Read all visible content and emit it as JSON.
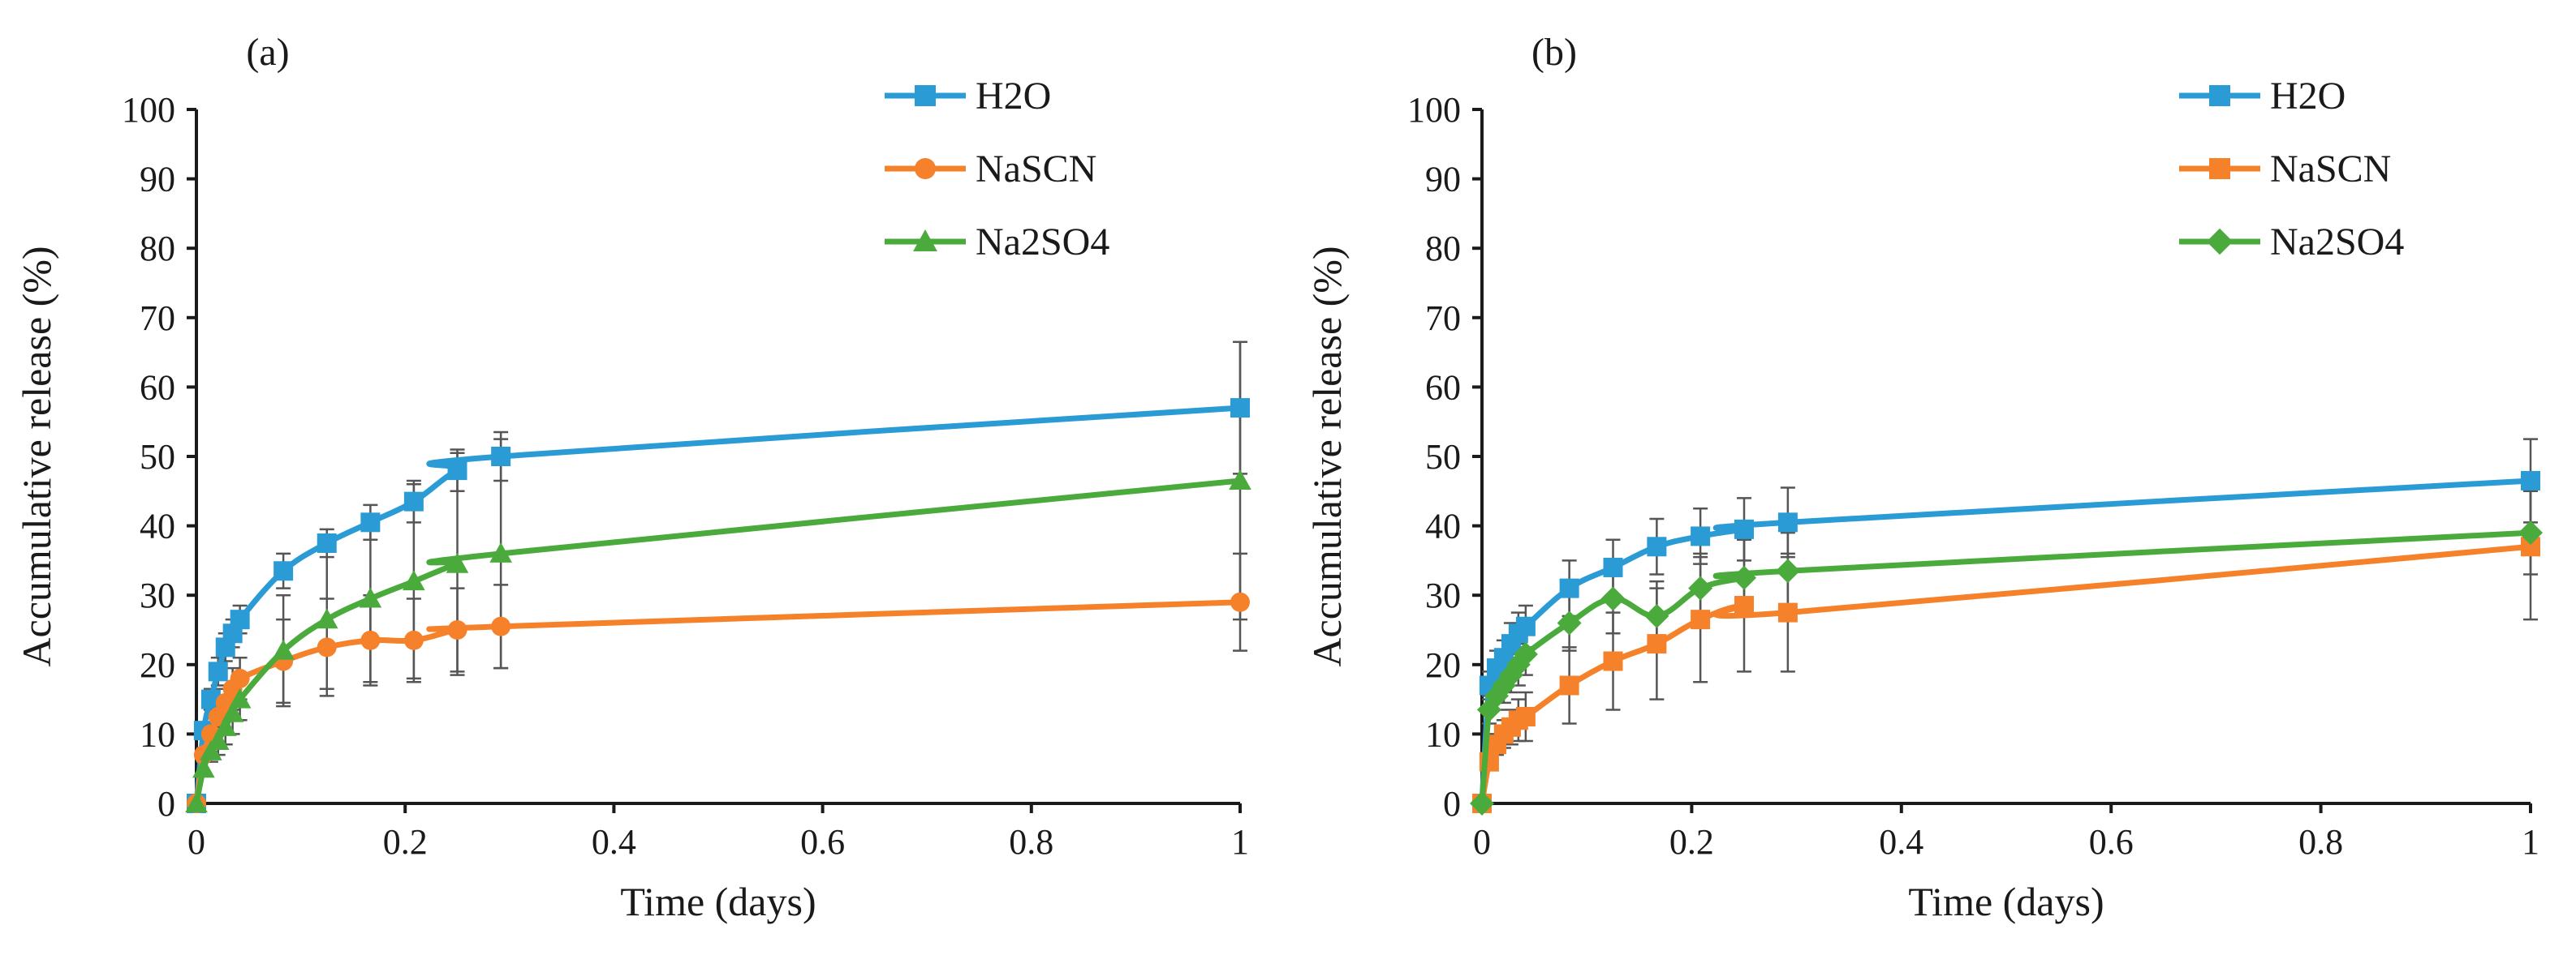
{
  "chart_data": [
    {
      "type": "line",
      "panel_label": "(a)",
      "xlabel": "Time (days)",
      "ylabel": "Accumulative release (%)",
      "xlim": [
        0,
        1
      ],
      "ylim": [
        0,
        100
      ],
      "x_ticks": [
        0,
        0.2,
        0.4,
        0.6,
        0.8,
        1
      ],
      "x_tick_labels": [
        "0",
        "0.2",
        "0.4",
        "0.6",
        "0.8",
        "1"
      ],
      "y_ticks": [
        0,
        10,
        20,
        30,
        40,
        50,
        60,
        70,
        80,
        90,
        100
      ],
      "y_tick_labels": [
        "0",
        "10",
        "20",
        "30",
        "40",
        "50",
        "60",
        "70",
        "80",
        "90",
        "100"
      ],
      "grid": false,
      "legend_position": "top-right",
      "series": [
        {
          "name": "H2O",
          "color": "#2b9bd6",
          "marker": "square",
          "x": [
            0,
            0.0069,
            0.0139,
            0.0208,
            0.0278,
            0.0347,
            0.0417,
            0.0833,
            0.125,
            0.1667,
            0.2083,
            0.25,
            0.2917,
            1
          ],
          "y": [
            0,
            10.5,
            15,
            19,
            22.5,
            24.5,
            26.5,
            33.5,
            37.5,
            40.5,
            43.5,
            48,
            50,
            57
          ],
          "err": [
            0,
            1,
            1.5,
            2,
            2,
            2,
            2,
            2.5,
            2,
            2.5,
            3,
            3,
            3.5,
            9.5
          ]
        },
        {
          "name": "NaSCN",
          "color": "#f5822b",
          "marker": "circle",
          "x": [
            0,
            0.0069,
            0.0139,
            0.0208,
            0.0278,
            0.0347,
            0.0417,
            0.0833,
            0.125,
            0.1667,
            0.2083,
            0.25,
            0.2917,
            1
          ],
          "y": [
            0,
            7,
            10,
            12.5,
            14.5,
            16.5,
            18,
            20.5,
            22.5,
            23.5,
            23.5,
            25,
            25.5,
            29
          ],
          "err": [
            0,
            1,
            1.5,
            2,
            2,
            3,
            3,
            6,
            7,
            6.5,
            6,
            6,
            6,
            7
          ]
        },
        {
          "name": "Na2SO4",
          "color": "#4aab3c",
          "marker": "triangle",
          "x": [
            0,
            0.0069,
            0.0139,
            0.0208,
            0.0278,
            0.0347,
            0.0417,
            0.0833,
            0.125,
            0.1667,
            0.2083,
            0.25,
            0.2917,
            1
          ],
          "y": [
            0,
            5,
            7.5,
            9,
            11,
            13,
            15,
            22,
            26.5,
            29.5,
            32,
            34.5,
            36,
            46.5
          ],
          "err": [
            0,
            1,
            1.5,
            2,
            2.5,
            3,
            3,
            8,
            10,
            12,
            14,
            16,
            16.5,
            20
          ]
        }
      ]
    },
    {
      "type": "line",
      "panel_label": "(b)",
      "xlabel": "Time (days)",
      "ylabel": "Accumulative release (%)",
      "xlim": [
        0,
        1
      ],
      "ylim": [
        0,
        100
      ],
      "x_ticks": [
        0,
        0.2,
        0.4,
        0.6,
        0.8,
        1
      ],
      "x_tick_labels": [
        "0",
        "0.2",
        "0.4",
        "0.6",
        "0.8",
        "1"
      ],
      "y_ticks": [
        0,
        10,
        20,
        30,
        40,
        50,
        60,
        70,
        80,
        90,
        100
      ],
      "y_tick_labels": [
        "0",
        "10",
        "20",
        "30",
        "40",
        "50",
        "60",
        "70",
        "80",
        "90",
        "100"
      ],
      "grid": false,
      "legend_position": "top-right",
      "series": [
        {
          "name": "H2O",
          "color": "#2b9bd6",
          "marker": "square",
          "x": [
            0,
            0.0069,
            0.0139,
            0.0208,
            0.0278,
            0.0347,
            0.0417,
            0.0833,
            0.125,
            0.1667,
            0.2083,
            0.25,
            0.2917,
            1
          ],
          "y": [
            0,
            17,
            19.5,
            21,
            23,
            24.5,
            25.5,
            31,
            34,
            37,
            38.5,
            39.5,
            40.5,
            46.5
          ],
          "err": [
            0,
            2,
            2.5,
            2.5,
            3,
            3,
            3,
            4,
            4,
            4,
            4,
            4.5,
            5,
            6
          ]
        },
        {
          "name": "NaSCN",
          "color": "#f5822b",
          "marker": "square",
          "x": [
            0,
            0.0069,
            0.0139,
            0.0208,
            0.0278,
            0.0347,
            0.0417,
            0.0833,
            0.125,
            0.1667,
            0.2083,
            0.25,
            0.2917,
            1
          ],
          "y": [
            0,
            6,
            8.5,
            10,
            11,
            12,
            12.5,
            17,
            20.5,
            23,
            26.5,
            28.5,
            27.5,
            37
          ],
          "err": [
            0,
            1,
            1.5,
            2,
            2.5,
            3,
            3.5,
            5.5,
            7,
            8,
            9,
            9.5,
            8.5,
            10.5
          ]
        },
        {
          "name": "Na2SO4",
          "color": "#4aab3c",
          "marker": "diamond",
          "x": [
            0,
            0.0069,
            0.0139,
            0.0208,
            0.0278,
            0.0347,
            0.0417,
            0.0833,
            0.125,
            0.1667,
            0.2083,
            0.25,
            0.2917,
            1
          ],
          "y": [
            0,
            13.5,
            15.5,
            17,
            18.5,
            20,
            21.5,
            26,
            29.5,
            27,
            31,
            32.5,
            33.5,
            39
          ],
          "err": [
            0,
            2,
            2,
            2.5,
            2.5,
            3,
            3,
            4,
            5,
            5,
            5,
            5.5,
            5.5,
            6
          ]
        }
      ]
    }
  ]
}
